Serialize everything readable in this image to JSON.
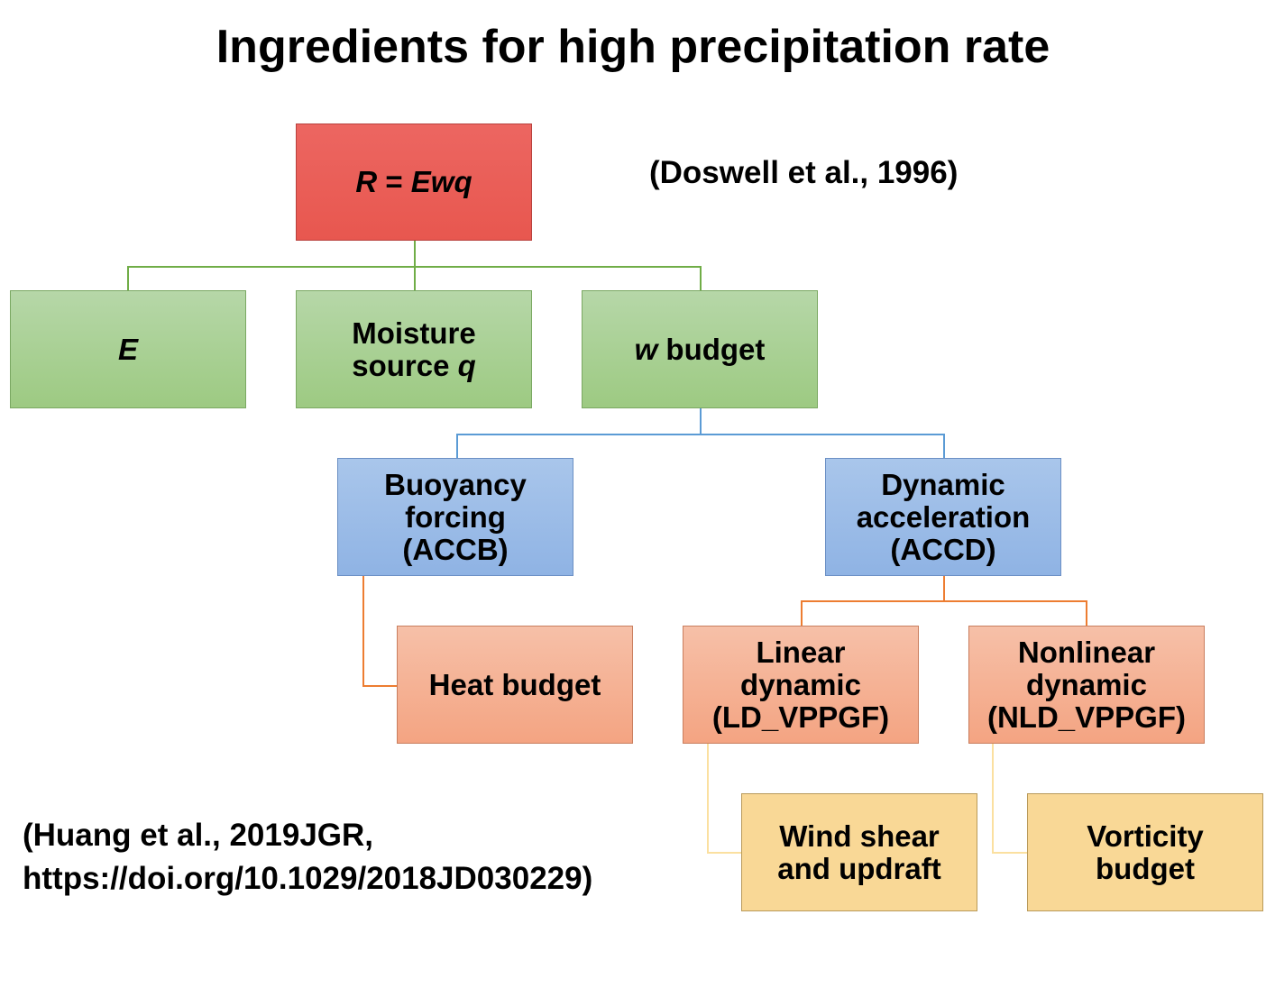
{
  "title": "Ingredients for high precipitation rate",
  "citations": {
    "doswell": "(Doswell et al., 1996)",
    "huang_line1": "(Huang et al., 2019JGR,",
    "huang_line2": "https://doi.org/10.1029/2018JD030229)"
  },
  "nodes": {
    "root": {
      "R": "R",
      "eq": " = ",
      "Ewq": "Ewq"
    },
    "E": {
      "label": "E"
    },
    "moisture": {
      "line1": "Moisture",
      "line2": "source ",
      "q": "q"
    },
    "w_budget": {
      "w": "w",
      "rest": " budget"
    },
    "buoyancy": {
      "line1": "Buoyancy",
      "line2": "forcing",
      "line3": "(ACCB)"
    },
    "dynamic": {
      "line1": "Dynamic",
      "line2": "acceleration",
      "line3": "(ACCD)"
    },
    "heat": {
      "label": "Heat budget"
    },
    "linear": {
      "line1": "Linear",
      "line2": "dynamic",
      "line3": "(LD_VPPGF)"
    },
    "nonlinear": {
      "line1": "Nonlinear",
      "line2": "dynamic",
      "line3": "(NLD_VPPGF)"
    },
    "wind": {
      "line1": "Wind shear",
      "line2": "and updraft"
    },
    "vorticity": {
      "line1": "Vorticity",
      "line2": "budget"
    }
  },
  "colors": {
    "red": "#e95a55",
    "green": "#a9d08e",
    "blue": "#9dbde8",
    "orange": "#f5b295",
    "yellow": "#f9d896",
    "green_line": "#70ad47",
    "blue_line": "#5b9bd5",
    "orange_line": "#ed7d31",
    "yellow_line": "#fbe5a6"
  }
}
